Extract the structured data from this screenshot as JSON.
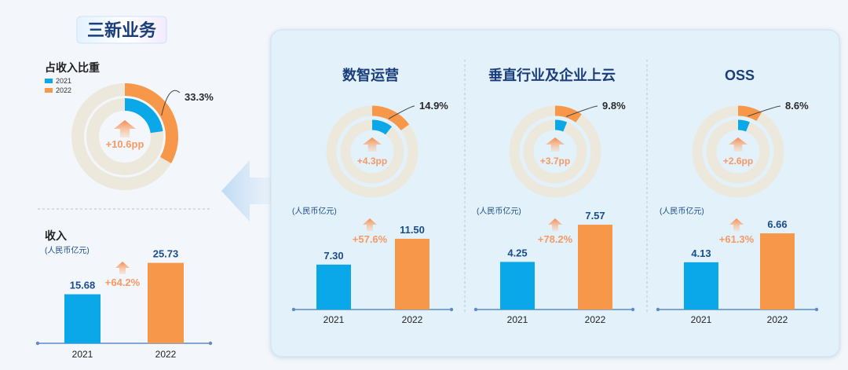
{
  "title": "三新业务",
  "colors": {
    "y2021": "#0aa8e8",
    "y2022": "#f7974a",
    "track": "#ece8dc",
    "text": "#2a2a2a",
    "label": "#1a4d8c",
    "arrow": "#f59a64",
    "axis": "#5b8cc8"
  },
  "left": {
    "share_title": "占收入比重",
    "legend": [
      "2021",
      "2022"
    ],
    "share_2021_pct": 22.7,
    "share_2022_pct": 33.3,
    "share_2022_label": "33.3%",
    "share_change": "+10.6pp",
    "revenue_title": "收入",
    "unit": "(人民币亿元)",
    "revenue_change": "+64.2%"
  },
  "segments": [
    {
      "name": "数智运营",
      "share_2021_pct": 10.6,
      "share_2022_pct": 14.9,
      "share_2022_label": "14.9%",
      "share_change": "+4.3pp",
      "unit": "(人民币亿元)",
      "revenue_change": "+57.6%"
    },
    {
      "name": "垂直行业及企业上云",
      "share_2021_pct": 6.1,
      "share_2022_pct": 9.8,
      "share_2022_label": "9.8%",
      "share_change": "+3.7pp",
      "unit": "(人民币亿元)",
      "revenue_change": "+78.2%"
    },
    {
      "name": "OSS",
      "share_2021_pct": 6.0,
      "share_2022_pct": 8.6,
      "share_2022_label": "8.6%",
      "share_change": "+2.6pp",
      "unit": "(人民币亿元)",
      "revenue_change": "+61.3%"
    }
  ],
  "chart_data": [
    {
      "type": "bar",
      "title": "收入",
      "ylabel": "(人民币亿元)",
      "categories": [
        "2021",
        "2022"
      ],
      "values": [
        15.68,
        25.73
      ],
      "value_labels": [
        "15.68",
        "25.73"
      ],
      "annotation": "+64.2%"
    },
    {
      "type": "bar",
      "title": "数智运营",
      "ylabel": "(人民币亿元)",
      "categories": [
        "2021",
        "2022"
      ],
      "values": [
        7.3,
        11.5
      ],
      "value_labels": [
        "7.30",
        "11.50"
      ],
      "annotation": "+57.6%"
    },
    {
      "type": "bar",
      "title": "垂直行业及企业上云",
      "ylabel": "(人民币亿元)",
      "categories": [
        "2021",
        "2022"
      ],
      "values": [
        4.25,
        7.57
      ],
      "value_labels": [
        "4.25",
        "7.57"
      ],
      "annotation": "+78.2%"
    },
    {
      "type": "bar",
      "title": "OSS",
      "ylabel": "(人民币亿元)",
      "categories": [
        "2021",
        "2022"
      ],
      "values": [
        4.13,
        6.66
      ],
      "value_labels": [
        "4.13",
        "6.66"
      ],
      "annotation": "+61.3%"
    }
  ]
}
